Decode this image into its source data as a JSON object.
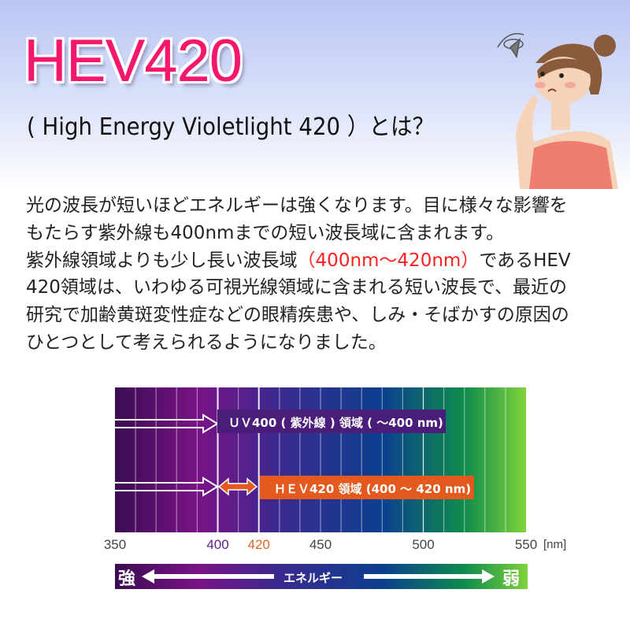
{
  "header": {
    "title": "HEV420",
    "subtitle": "( High Energy Violetlight 420 ）とは？"
  },
  "body": {
    "lines": [
      "光の波長が短いほどエネルギーは強くなります。目に様々な影響を",
      "もたらす紫外線も400nmまでの短い波長域に含まれます。",
      "紫外線領域よりも少し長い波長域",
      "420領域は、いわゆる可視光線領域に含まれる短い波長で、最近の",
      "研究で加齢黄斑変性症などの眼精疾患や、しみ・そばかすの原因の",
      "ひとつとして考えられるようになりました。"
    ],
    "highlight": "（400nm～420nm）",
    "line3_tail": "であるHEV",
    "highlight_color": "#ff2020"
  },
  "chart_data": {
    "type": "diagram",
    "axis": {
      "min": 350,
      "max": 550,
      "unit": "[nm]"
    },
    "ticks": [
      {
        "value": 350,
        "label": "350",
        "color": "#444444"
      },
      {
        "value": 400,
        "label": "400",
        "color": "#5b1f8a"
      },
      {
        "value": 420,
        "label": "420",
        "color": "#e0631e"
      },
      {
        "value": 450,
        "label": "450",
        "color": "#444444"
      },
      {
        "value": 500,
        "label": "500",
        "color": "#444444"
      },
      {
        "value": 550,
        "label": "550",
        "color": "#444444"
      }
    ],
    "bands": [
      {
        "label": "ＵＶ400 ( 紫外線 ) 領域 ( ～400 nm)",
        "from": 350,
        "to": 400,
        "color": "#4a1d7a"
      },
      {
        "label": "ＨＥＶ420 領域 (400 ～ 420 nm)",
        "from": 400,
        "to": 420,
        "color": "#e45a1e"
      }
    ],
    "energy_bar": {
      "strong": "強",
      "weak": "弱",
      "label": "エネルギー"
    }
  }
}
